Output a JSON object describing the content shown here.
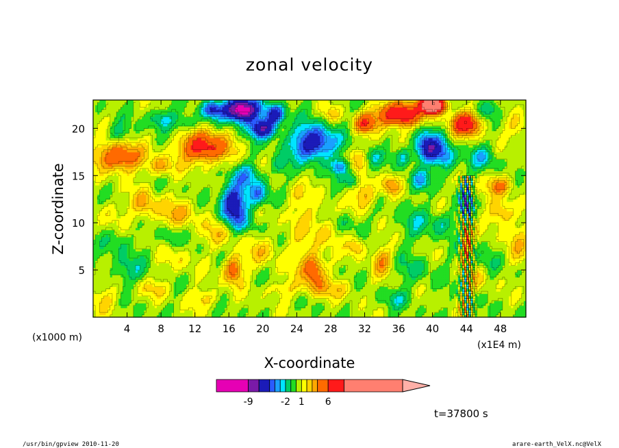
{
  "chart_data": {
    "type": "heatmap",
    "title": "zonal velocity",
    "xlabel": "X-coordinate",
    "ylabel": "Z-coordinate",
    "x_unit": "(x1E4 m)",
    "y_unit": "(x1000 m)",
    "xlim": [
      0,
      51
    ],
    "ylim": [
      0,
      23
    ],
    "x_ticks": [
      4,
      8,
      12,
      16,
      20,
      24,
      28,
      32,
      36,
      40,
      44,
      48
    ],
    "y_ticks": [
      5,
      10,
      15,
      20
    ],
    "colorbar": {
      "labels": [
        {
          "value": -9,
          "text": "-9"
        },
        {
          "value": -2,
          "text": "-2"
        },
        {
          "value": 1,
          "text": "1"
        },
        {
          "value": 6,
          "text": "6"
        }
      ],
      "bins": [
        {
          "from": -15,
          "to": -9,
          "color": "#e600b4"
        },
        {
          "from": -9,
          "to": -7,
          "color": "#7a1aa8"
        },
        {
          "from": -7,
          "to": -5,
          "color": "#1b1bb8"
        },
        {
          "from": -5,
          "to": -4,
          "color": "#2a5cff"
        },
        {
          "from": -4,
          "to": -3,
          "color": "#1aa0ff"
        },
        {
          "from": -3,
          "to": -2,
          "color": "#00e5ff"
        },
        {
          "from": -2,
          "to": -1,
          "color": "#00cc66"
        },
        {
          "from": -1,
          "to": 0,
          "color": "#22dd22"
        },
        {
          "from": 0,
          "to": 1,
          "color": "#b8f000"
        },
        {
          "from": 1,
          "to": 2,
          "color": "#ffff00"
        },
        {
          "from": 2,
          "to": 3,
          "color": "#ffd400"
        },
        {
          "from": 3,
          "to": 4,
          "color": "#ffa800"
        },
        {
          "from": 4,
          "to": 6,
          "color": "#ff6a00"
        },
        {
          "from": 6,
          "to": 9,
          "color": "#ff1a1a"
        },
        {
          "from": 9,
          "to": 20,
          "color": "#ff7f70"
        },
        {
          "from": 20,
          "to": 24,
          "color": "#ffb0a8"
        }
      ]
    },
    "time_label": "t=37800 s"
  },
  "footer": {
    "left": "/usr/bin/gpview   2010-11-20",
    "right": "arare-earth_VelX.nc@VelX"
  }
}
